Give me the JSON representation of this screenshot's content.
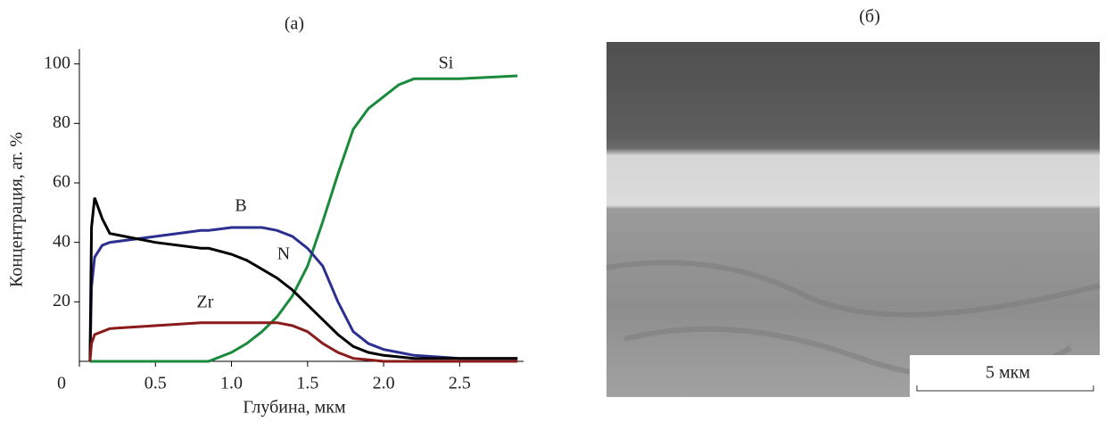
{
  "chart_data": {
    "type": "line",
    "title": "(а)",
    "x_label": "Глубина, мкм",
    "y_label": "Концентрация, ат. %",
    "x": [
      0.07,
      0.08,
      0.1,
      0.15,
      0.2,
      0.5,
      0.8,
      0.85,
      1.0,
      1.1,
      1.2,
      1.3,
      1.4,
      1.5,
      1.6,
      1.7,
      1.8,
      1.9,
      2.0,
      2.1,
      2.2,
      2.5,
      2.88
    ],
    "series": [
      {
        "name": "Si",
        "color": "#1a8a3c",
        "values": [
          0,
          0,
          0,
          0,
          0,
          0,
          0,
          0,
          3,
          6,
          10,
          15,
          22,
          32,
          47,
          63,
          78,
          85,
          89,
          93,
          95,
          95,
          96
        ]
      },
      {
        "name": "B",
        "color": "#2b2f8f",
        "values": [
          0,
          25,
          35,
          39,
          40,
          42,
          44,
          44,
          45,
          45,
          45,
          44,
          42,
          38,
          32,
          20,
          10,
          6,
          4,
          3,
          2,
          1,
          1
        ]
      },
      {
        "name": "N",
        "color": "#000000",
        "values": [
          0,
          45,
          55,
          48,
          43,
          40,
          38,
          38,
          36,
          34,
          31,
          28,
          24,
          19,
          14,
          9,
          5,
          3,
          2,
          1.5,
          1,
          1,
          1
        ]
      },
      {
        "name": "Zr",
        "color": "#8b1a1a",
        "values": [
          0,
          6,
          9,
          10,
          11,
          12,
          13,
          13,
          13,
          13,
          13,
          13,
          12,
          10,
          6,
          3,
          1,
          0.5,
          0,
          0,
          0,
          0,
          0
        ]
      }
    ],
    "xlim": [
      0,
      2.92
    ],
    "ylim": [
      0,
      105
    ],
    "xticks": [
      0,
      0.5,
      {
        "value": 1,
        "label": "1.0"
      },
      1.5,
      {
        "value": 2,
        "label": "2.0"
      },
      2.5
    ],
    "yticks": [
      20,
      40,
      60,
      80,
      100
    ],
    "grid": false
  },
  "image_panel": {
    "title": "(б)",
    "scale_bar": "5 мкм"
  }
}
